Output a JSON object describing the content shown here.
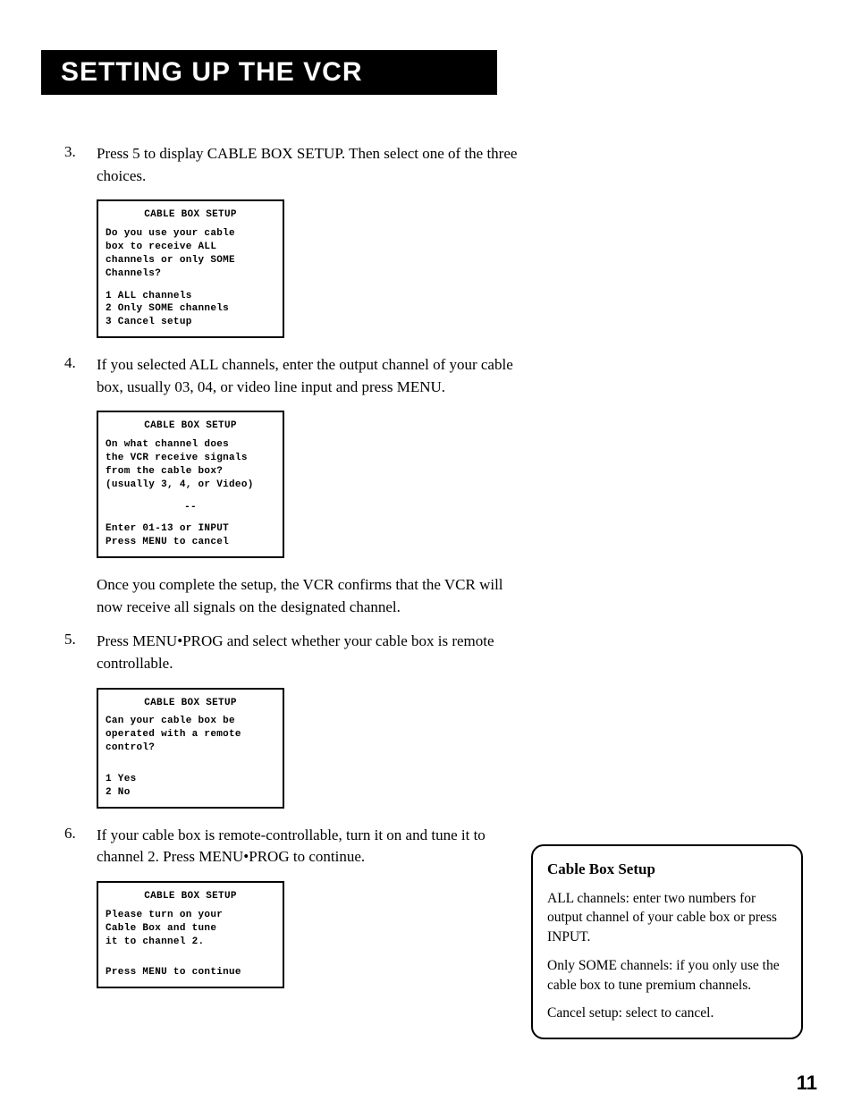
{
  "title": "SETTING UP THE VCR",
  "steps": {
    "s3": {
      "num": "3.",
      "text": "Press 5 to display CABLE BOX SETUP. Then select one of the three choices."
    },
    "s4": {
      "num": "4.",
      "text": "If you selected ALL channels, enter the output channel of your cable box, usually 03, 04, or video line input and press MENU."
    },
    "s4_follow": "Once you complete the setup, the VCR confirms that the VCR will now receive all signals on the designated channel.",
    "s5": {
      "num": "5.",
      "text": "Press MENU•PROG and select whether your cable box is remote controllable."
    },
    "s6": {
      "num": "6.",
      "text": "If your cable box is remote-controllable, turn it on and tune it to channel 2. Press MENU•PROG to continue."
    }
  },
  "screens": {
    "box1": {
      "title": "CABLE BOX SETUP",
      "l1": "Do you use your cable",
      "l2": "box to receive ALL",
      "l3": "channels or only SOME",
      "l4": "Channels?",
      "opt1": "1 ALL channels",
      "opt2": "2 Only SOME channels",
      "opt3": "3 Cancel setup"
    },
    "box2": {
      "title": "CABLE BOX SETUP",
      "l1": "On what channel does",
      "l2": "the VCR receive signals",
      "l3": "from the cable box?",
      "l4": "(usually 3, 4, or Video)",
      "dash": "--",
      "l5": "Enter 01-13 or INPUT",
      "l6": "Press MENU to cancel"
    },
    "box3": {
      "title": "CABLE BOX SETUP",
      "l1": "Can your cable box be",
      "l2": "operated with a remote",
      "l3": "control?",
      "opt1": "1 Yes",
      "opt2": "2 No"
    },
    "box4": {
      "title": "CABLE BOX SETUP",
      "l1": "Please turn on your",
      "l2": "Cable Box and tune",
      "l3": "it to channel 2.",
      "l4": "Press MENU to continue"
    }
  },
  "sidebar": {
    "heading": "Cable Box Setup",
    "p1": "ALL channels: enter two numbers for output channel of your cable box or press INPUT.",
    "p2": "Only SOME channels: if you only use the cable box to tune premium channels.",
    "p3": "Cancel setup: select to cancel."
  },
  "page_number": "11"
}
